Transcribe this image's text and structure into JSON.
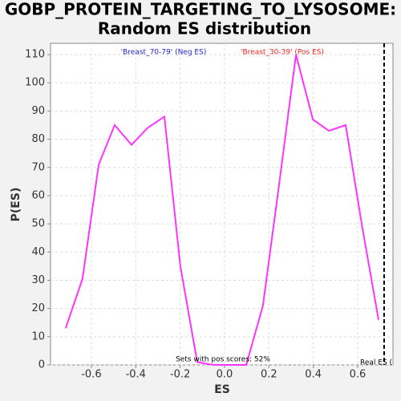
{
  "chart_data": {
    "type": "line",
    "title": [
      "GOBP_PROTEIN_TARGETING_TO_LYSOSOME:",
      "Random ES distribution"
    ],
    "x_label": "ES",
    "y_label": "P(ES)",
    "x": [
      -0.716,
      -0.64,
      -0.567,
      -0.495,
      -0.419,
      -0.347,
      -0.271,
      -0.199,
      -0.123,
      -0.05,
      0.025,
      0.098,
      0.173,
      0.246,
      0.322,
      0.398,
      0.47,
      0.546,
      0.618,
      0.694
    ],
    "series": [
      {
        "name": "P(ES)",
        "color": "#ff33ff",
        "values": [
          13,
          30.5,
          71,
          85,
          78,
          84,
          88,
          35,
          1,
          0,
          0,
          0,
          21,
          64,
          110,
          87,
          83,
          85,
          50,
          16
        ]
      }
    ],
    "xlim": [
      -0.784,
      0.759
    ],
    "ylim": [
      0,
      114
    ],
    "xticks": [
      -0.6,
      -0.4,
      -0.2,
      {
        "value": 0,
        "label": "0.0"
      },
      0.2,
      0.4,
      0.6
    ],
    "yticks": [
      0,
      10,
      20,
      30,
      40,
      50,
      60,
      70,
      80,
      90,
      100,
      110
    ],
    "grid": true,
    "real_es": 0.719,
    "annotations": {
      "neg_label": "'Breast_70-79' (Neg ES)",
      "neg_color": "#2222cc",
      "pos_label": "'Breast_30-39' (Pos ES)",
      "pos_color": "#ee2222",
      "pos_scores": "Sets with pos scores: 52%",
      "real_es_label": "Real ES ("
    }
  }
}
